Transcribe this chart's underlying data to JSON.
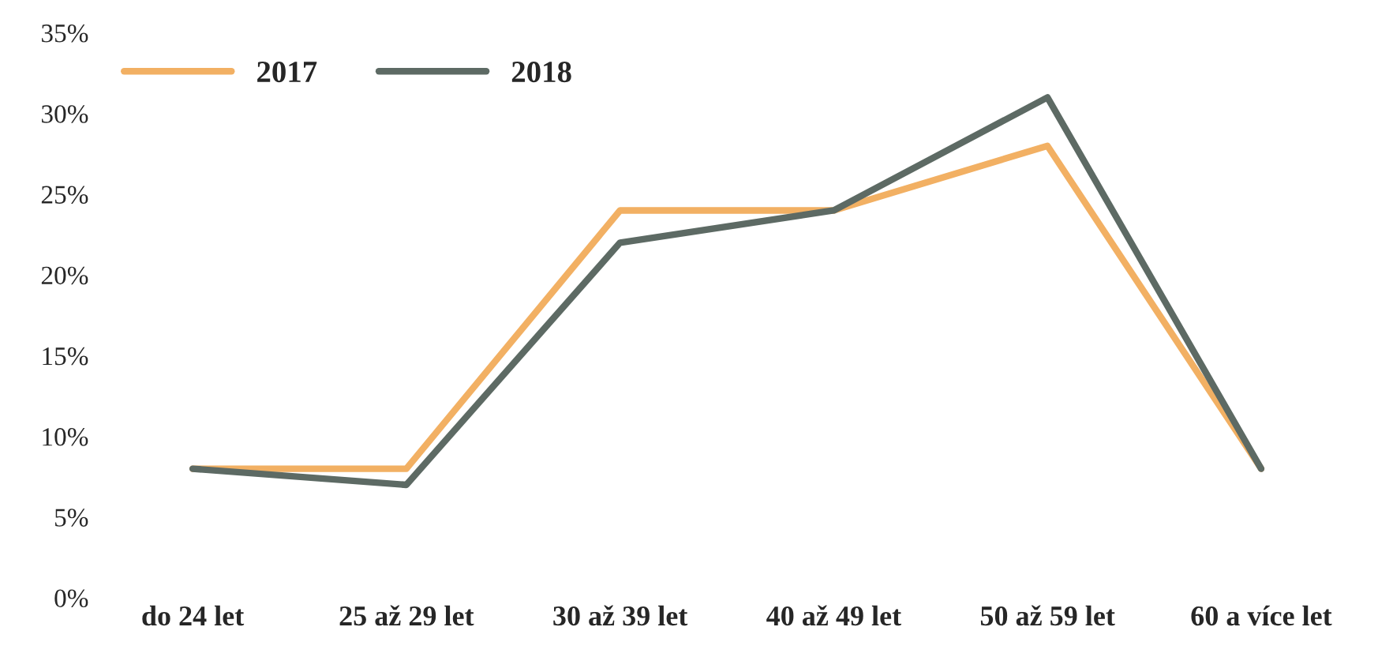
{
  "chart_data": {
    "type": "line",
    "categories": [
      "do 24 let",
      "25 až 29 let",
      "30 až 39 let",
      "40 až 49 let",
      "50 až 59 let",
      "60 a více let"
    ],
    "series": [
      {
        "name": "2017",
        "color": "#f2b063",
        "values": [
          8,
          8,
          24,
          24,
          28,
          8
        ]
      },
      {
        "name": "2018",
        "color": "#5d6a64",
        "values": [
          8,
          7,
          22,
          24,
          31,
          8
        ]
      }
    ],
    "ylim": [
      0,
      35
    ],
    "yticks": [
      {
        "value": 0,
        "label": "0%"
      },
      {
        "value": 5,
        "label": "5%"
      },
      {
        "value": 10,
        "label": "10%"
      },
      {
        "value": 15,
        "label": "15%"
      },
      {
        "value": 20,
        "label": "20%"
      },
      {
        "value": 25,
        "label": "25%"
      },
      {
        "value": 30,
        "label": "30%"
      },
      {
        "value": 35,
        "label": "35%"
      }
    ],
    "grid": false,
    "legend": "top left",
    "marker": "none",
    "line_style": "solid"
  }
}
